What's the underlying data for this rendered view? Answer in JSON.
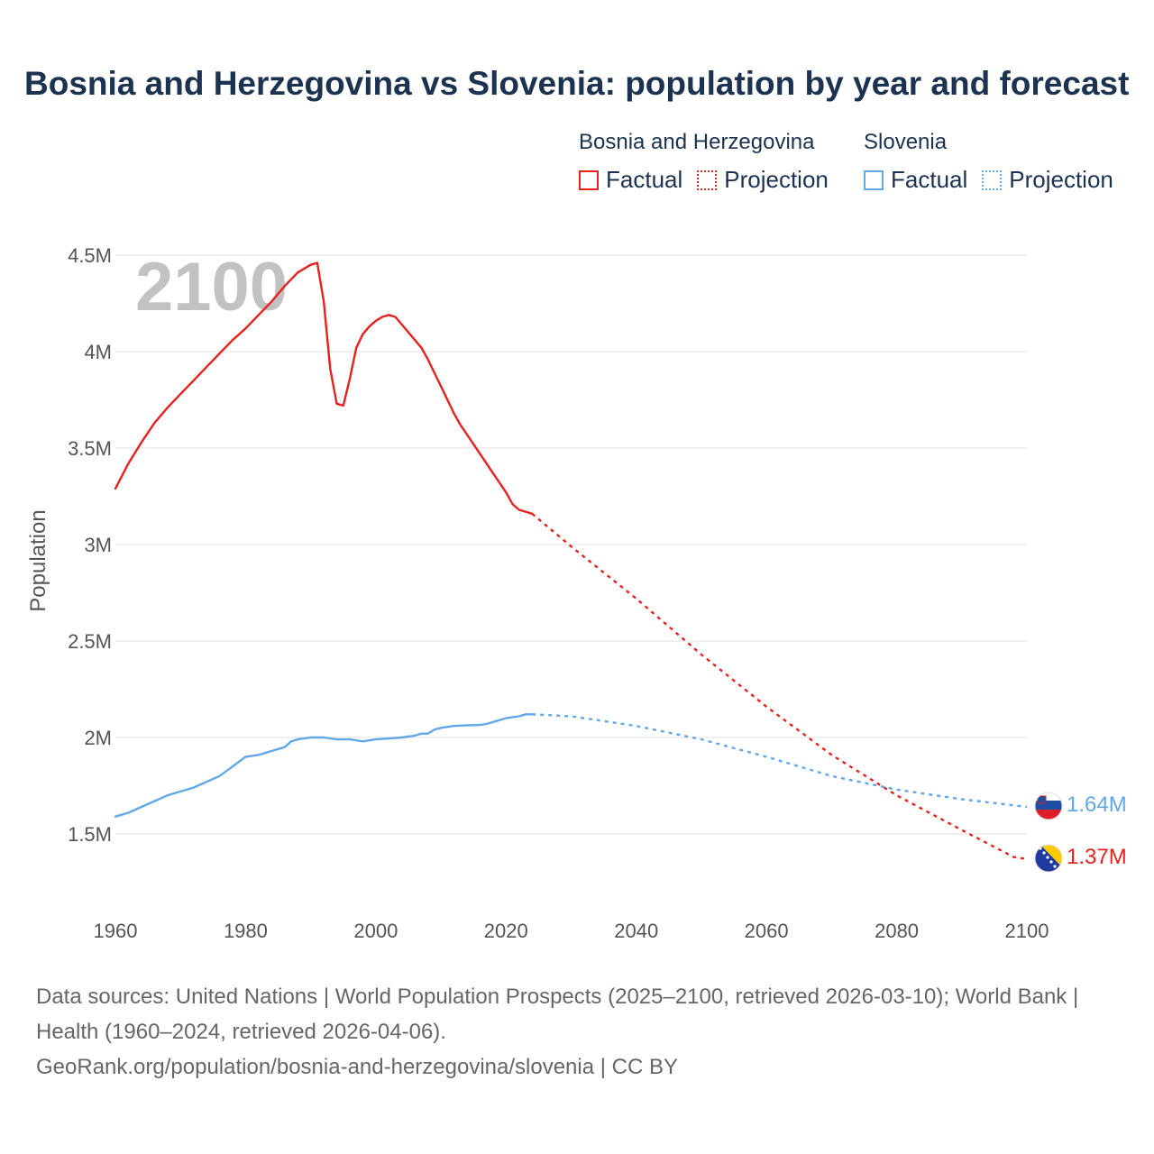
{
  "title": "Bosnia and Herzegovina vs Slovenia: population by year and forecast",
  "legend": {
    "groups": [
      {
        "name": "Bosnia and Herzegovina",
        "color": "#e8211e",
        "factual": "Factual",
        "projection": "Projection"
      },
      {
        "name": "Slovenia",
        "color": "#62a8e6",
        "factual": "Factual",
        "projection": "Projection"
      }
    ]
  },
  "year_overlay": "2100",
  "footer": {
    "sources": "Data sources: United Nations | World Population Prospects (2025–2100, retrieved 2026-03-10); World Bank | Health (1960–2024, retrieved 2026-04-06).",
    "link": "GeoRank.org/population/bosnia-and-herzegovina/slovenia | CC BY"
  },
  "chart_data": {
    "type": "line",
    "title": "Bosnia and Herzegovina vs Slovenia: population by year and forecast",
    "xlabel": "",
    "ylabel": "Population",
    "xlim": [
      1960,
      2100
    ],
    "ylim": [
      1150000,
      4550000
    ],
    "x_ticks": [
      1960,
      1980,
      2000,
      2020,
      2040,
      2060,
      2080,
      2100
    ],
    "x_tick_labels": [
      "1960",
      "1980",
      "2000",
      "2020",
      "2040",
      "2060",
      "2080",
      "2100"
    ],
    "y_ticks": [
      1500000,
      2000000,
      2500000,
      3000000,
      3500000,
      4000000,
      4500000
    ],
    "y_tick_labels": [
      "1.5M",
      "2M",
      "2.5M",
      "3M",
      "3.5M",
      "4M",
      "4.5M"
    ],
    "grid": true,
    "series": [
      {
        "name": "Bosnia and Herzegovina",
        "color": "#e8211e",
        "end_label": "1.37M",
        "factual": [
          [
            1960,
            3290000
          ],
          [
            1962,
            3420000
          ],
          [
            1964,
            3530000
          ],
          [
            1966,
            3630000
          ],
          [
            1968,
            3710000
          ],
          [
            1970,
            3780000
          ],
          [
            1972,
            3850000
          ],
          [
            1974,
            3920000
          ],
          [
            1976,
            3990000
          ],
          [
            1978,
            4060000
          ],
          [
            1980,
            4120000
          ],
          [
            1982,
            4190000
          ],
          [
            1984,
            4260000
          ],
          [
            1986,
            4340000
          ],
          [
            1988,
            4410000
          ],
          [
            1990,
            4450000
          ],
          [
            1991,
            4460000
          ],
          [
            1992,
            4260000
          ],
          [
            1993,
            3910000
          ],
          [
            1994,
            3730000
          ],
          [
            1995,
            3720000
          ],
          [
            1996,
            3860000
          ],
          [
            1997,
            4020000
          ],
          [
            1998,
            4090000
          ],
          [
            1999,
            4130000
          ],
          [
            2000,
            4160000
          ],
          [
            2001,
            4180000
          ],
          [
            2002,
            4190000
          ],
          [
            2003,
            4180000
          ],
          [
            2004,
            4140000
          ],
          [
            2005,
            4100000
          ],
          [
            2006,
            4060000
          ],
          [
            2007,
            4020000
          ],
          [
            2008,
            3960000
          ],
          [
            2009,
            3890000
          ],
          [
            2010,
            3820000
          ],
          [
            2011,
            3750000
          ],
          [
            2012,
            3680000
          ],
          [
            2013,
            3620000
          ],
          [
            2014,
            3570000
          ],
          [
            2015,
            3520000
          ],
          [
            2016,
            3470000
          ],
          [
            2017,
            3420000
          ],
          [
            2018,
            3370000
          ],
          [
            2019,
            3320000
          ],
          [
            2020,
            3270000
          ],
          [
            2021,
            3210000
          ],
          [
            2022,
            3180000
          ],
          [
            2023,
            3170000
          ],
          [
            2024,
            3160000
          ]
        ],
        "projection": [
          [
            2024,
            3160000
          ],
          [
            2030,
            2990000
          ],
          [
            2040,
            2720000
          ],
          [
            2050,
            2430000
          ],
          [
            2060,
            2160000
          ],
          [
            2070,
            1910000
          ],
          [
            2080,
            1700000
          ],
          [
            2090,
            1520000
          ],
          [
            2098,
            1380000
          ],
          [
            2100,
            1370000
          ]
        ]
      },
      {
        "name": "Slovenia",
        "color": "#62a8e6",
        "end_label": "1.64M",
        "factual": [
          [
            1960,
            1590000
          ],
          [
            1962,
            1610000
          ],
          [
            1964,
            1640000
          ],
          [
            1966,
            1670000
          ],
          [
            1968,
            1700000
          ],
          [
            1970,
            1720000
          ],
          [
            1972,
            1740000
          ],
          [
            1974,
            1770000
          ],
          [
            1976,
            1800000
          ],
          [
            1978,
            1850000
          ],
          [
            1980,
            1900000
          ],
          [
            1982,
            1910000
          ],
          [
            1984,
            1930000
          ],
          [
            1986,
            1950000
          ],
          [
            1987,
            1980000
          ],
          [
            1988,
            1990000
          ],
          [
            1990,
            2000000
          ],
          [
            1992,
            2000000
          ],
          [
            1994,
            1990000
          ],
          [
            1996,
            1990000
          ],
          [
            1998,
            1980000
          ],
          [
            2000,
            1990000
          ],
          [
            2002,
            1995000
          ],
          [
            2004,
            2000000
          ],
          [
            2006,
            2010000
          ],
          [
            2007,
            2020000
          ],
          [
            2008,
            2020000
          ],
          [
            2009,
            2040000
          ],
          [
            2010,
            2050000
          ],
          [
            2012,
            2060000
          ],
          [
            2014,
            2063000
          ],
          [
            2016,
            2065000
          ],
          [
            2017,
            2070000
          ],
          [
            2018,
            2080000
          ],
          [
            2019,
            2090000
          ],
          [
            2020,
            2100000
          ],
          [
            2022,
            2110000
          ],
          [
            2023,
            2120000
          ],
          [
            2024,
            2120000
          ]
        ],
        "projection": [
          [
            2024,
            2120000
          ],
          [
            2030,
            2110000
          ],
          [
            2040,
            2060000
          ],
          [
            2050,
            1990000
          ],
          [
            2060,
            1900000
          ],
          [
            2070,
            1800000
          ],
          [
            2080,
            1730000
          ],
          [
            2090,
            1680000
          ],
          [
            2100,
            1640000
          ]
        ]
      }
    ]
  }
}
